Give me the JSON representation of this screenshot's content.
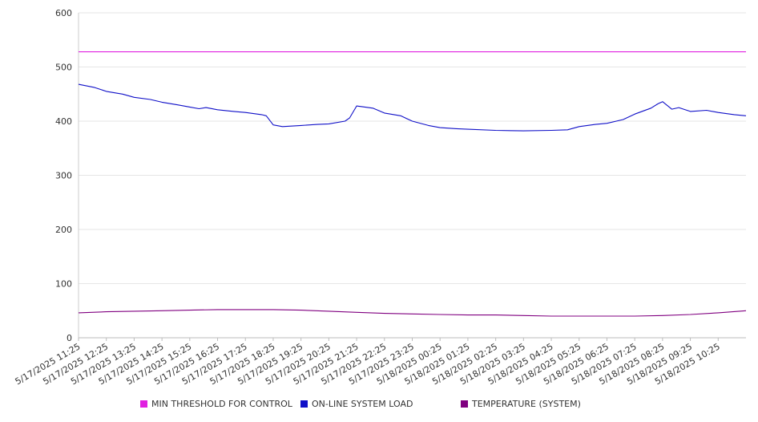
{
  "chart_data": {
    "type": "line",
    "title": "",
    "xlabel": "",
    "ylabel": "",
    "ylim": [
      0,
      600
    ],
    "y_ticks": [
      "0",
      "100",
      "200",
      "300",
      "400",
      "500",
      "600"
    ],
    "x_tick_labels": [
      "5/17/2025 11:25",
      "5/17/2025 12:25",
      "5/17/2025 13:25",
      "5/17/2025 14:25",
      "5/17/2025 15:25",
      "5/17/2025 16:25",
      "5/17/2025 17:25",
      "5/17/2025 18:25",
      "5/17/2025 19:25",
      "5/17/2025 20:25",
      "5/17/2025 21:25",
      "5/17/2025 22:25",
      "5/17/2025 23:25",
      "5/18/2025 00:25",
      "5/18/2025 01:25",
      "5/18/2025 02:25",
      "5/18/2025 03:25",
      "5/18/2025 04:25",
      "5/18/2025 05:25",
      "5/18/2025 06:25",
      "5/18/2025 07:25",
      "5/18/2025 08:25",
      "5/18/2025 09:25",
      "5/18/2025 10:25"
    ],
    "x_range": [
      "5/17/2025 11:25",
      "5/18/2025 11:25"
    ],
    "grid": "horizontal",
    "legend_position": "bottom",
    "series": [
      {
        "name": "MIN THRESHOLD FOR CONTROL",
        "color": "#e020e0",
        "x": [
          "5/17/2025 11:25",
          "5/18/2025 11:25"
        ],
        "values": [
          528,
          528
        ]
      },
      {
        "name": "ON-LINE SYSTEM LOAD",
        "color": "#1010c8",
        "x": [
          "5/17/2025 11:25",
          "5/17/2025 12:00",
          "5/17/2025 12:25",
          "5/17/2025 13:00",
          "5/17/2025 13:25",
          "5/17/2025 14:00",
          "5/17/2025 14:25",
          "5/17/2025 15:00",
          "5/17/2025 15:25",
          "5/17/2025 15:45",
          "5/17/2025 16:00",
          "5/17/2025 16:25",
          "5/17/2025 17:00",
          "5/17/2025 17:25",
          "5/17/2025 18:00",
          "5/17/2025 18:10",
          "5/17/2025 18:25",
          "5/17/2025 18:45",
          "5/17/2025 19:25",
          "5/17/2025 20:00",
          "5/17/2025 20:25",
          "5/17/2025 21:00",
          "5/17/2025 21:10",
          "5/17/2025 21:25",
          "5/17/2025 22:00",
          "5/17/2025 22:25",
          "5/17/2025 23:00",
          "5/17/2025 23:25",
          "5/18/2025 00:00",
          "5/18/2025 00:25",
          "5/18/2025 01:00",
          "5/18/2025 01:25",
          "5/18/2025 02:25",
          "5/18/2025 03:25",
          "5/18/2025 04:25",
          "5/18/2025 05:00",
          "5/18/2025 05:25",
          "5/18/2025 06:00",
          "5/18/2025 06:25",
          "5/18/2025 07:00",
          "5/18/2025 07:25",
          "5/18/2025 08:00",
          "5/18/2025 08:15",
          "5/18/2025 08:25",
          "5/18/2025 08:45",
          "5/18/2025 09:00",
          "5/18/2025 09:25",
          "5/18/2025 10:00",
          "5/18/2025 10:25",
          "5/18/2025 11:00",
          "5/18/2025 11:25"
        ],
        "values": [
          468,
          462,
          455,
          450,
          444,
          440,
          435,
          430,
          426,
          423,
          425,
          421,
          418,
          416,
          412,
          410,
          393,
          390,
          392,
          394,
          395,
          400,
          406,
          428,
          424,
          415,
          410,
          400,
          392,
          388,
          386,
          385,
          383,
          382,
          383,
          384,
          390,
          394,
          396,
          403,
          413,
          424,
          432,
          436,
          422,
          425,
          418,
          420,
          416,
          412,
          410
        ]
      },
      {
        "name": "TEMPERATURE (SYSTEM)",
        "color": "#800080",
        "x": [
          "5/17/2025 11:25",
          "5/17/2025 12:25",
          "5/17/2025 13:25",
          "5/17/2025 14:25",
          "5/17/2025 15:25",
          "5/17/2025 16:25",
          "5/17/2025 17:25",
          "5/17/2025 18:25",
          "5/17/2025 19:25",
          "5/17/2025 20:25",
          "5/17/2025 21:25",
          "5/17/2025 22:25",
          "5/17/2025 23:25",
          "5/18/2025 00:25",
          "5/18/2025 01:25",
          "5/18/2025 02:25",
          "5/18/2025 03:25",
          "5/18/2025 04:25",
          "5/18/2025 05:25",
          "5/18/2025 06:25",
          "5/18/2025 07:25",
          "5/18/2025 08:25",
          "5/18/2025 09:25",
          "5/18/2025 10:25",
          "5/18/2025 11:25"
        ],
        "values": [
          46,
          48,
          49,
          50,
          51,
          52,
          52,
          52,
          51,
          49,
          47,
          45,
          44,
          43,
          42,
          42,
          41,
          40,
          40,
          40,
          40,
          41,
          43,
          46,
          50
        ]
      }
    ]
  }
}
